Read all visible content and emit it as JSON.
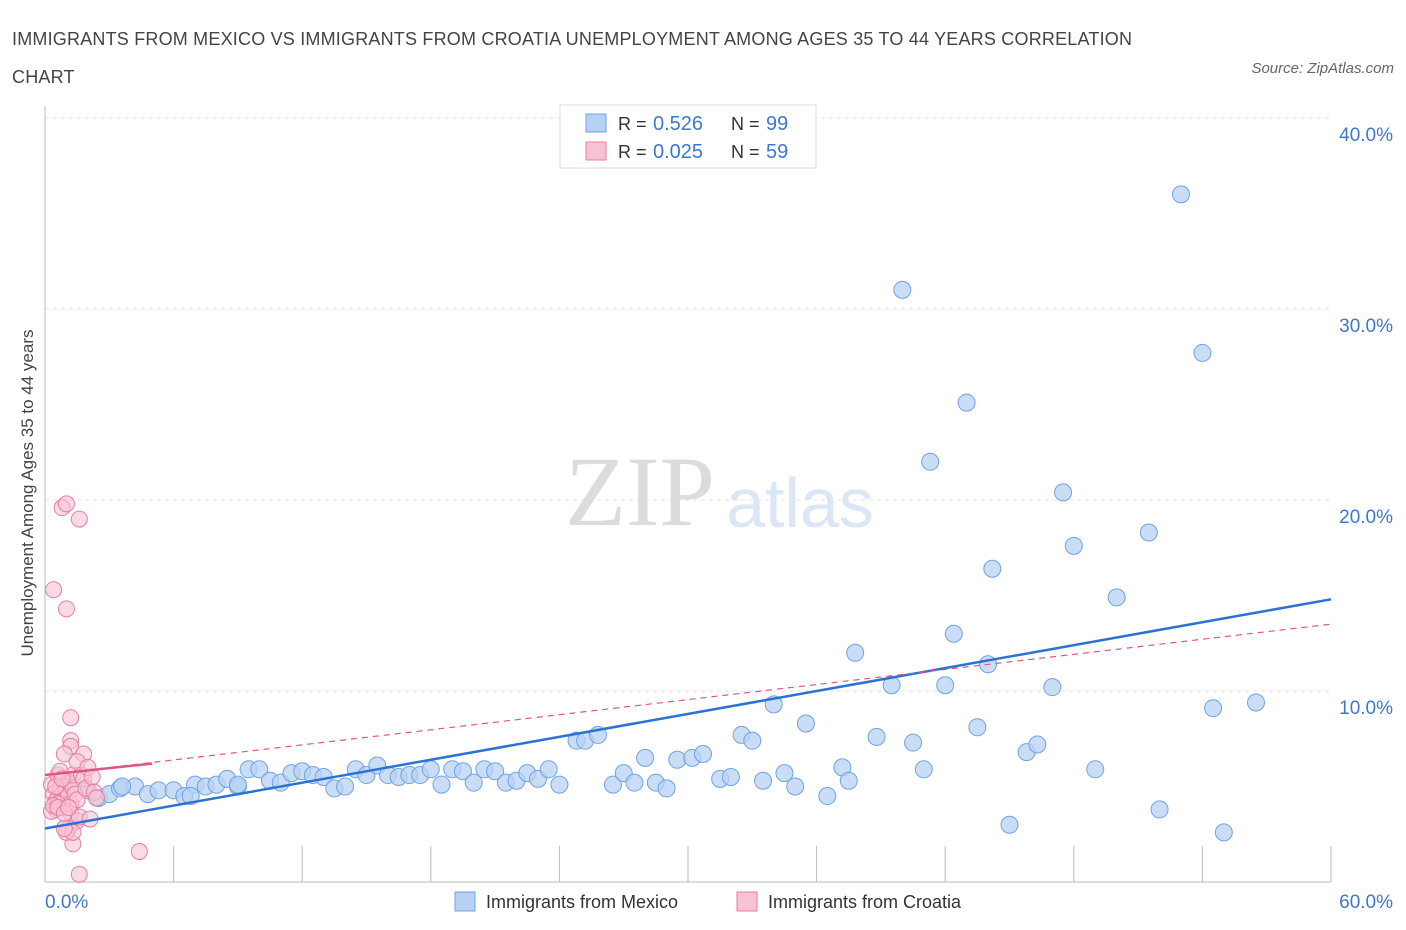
{
  "title": "IMMIGRANTS FROM MEXICO VS IMMIGRANTS FROM CROATIA UNEMPLOYMENT AMONG AGES 35 TO 44 YEARS CORRELATION CHART",
  "source": "Source: ZipAtlas.com",
  "watermark": {
    "zip": "ZIP",
    "atlas": "atlas"
  },
  "colors": {
    "mexico": "#6fa3e6",
    "mexico_fill": "#b7d1f4",
    "mexico_line": "#2a72d4",
    "croatia": "#e87ea3",
    "croatia_fill": "#f7c3d4",
    "croatia_line": "#e05585",
    "axis_text": "#3d78d0"
  },
  "legend_top": [
    {
      "r_label": "R = ",
      "r_value": "0.526",
      "n_label": "N = ",
      "n_value": "99"
    },
    {
      "r_label": "R = ",
      "r_value": "0.025",
      "n_label": "N = ",
      "n_value": "59"
    }
  ],
  "chart_data": {
    "type": "scatter",
    "title": "IMMIGRANTS FROM MEXICO VS IMMIGRANTS FROM CROATIA UNEMPLOYMENT AMONG AGES 35 TO 44 YEARS CORRELATION CHART",
    "xlabel": "",
    "ylabel": "Unemployment Among Ages 35 to 44 years",
    "xlim": [
      0,
      60
    ],
    "ylim": [
      0,
      40
    ],
    "x_tick_labels": [
      "0.0%",
      "60.0%"
    ],
    "y_ticks": [
      10,
      20,
      30,
      40
    ],
    "y_tick_labels": [
      "10.0%",
      "20.0%",
      "30.0%",
      "40.0%"
    ],
    "grid": true,
    "legend": "bottom",
    "series": [
      {
        "name": "Immigrants from Mexico",
        "trend": {
          "x": [
            0,
            60
          ],
          "y": [
            2.8,
            14.8
          ]
        },
        "points": [
          [
            2.0,
            4.8
          ],
          [
            2.5,
            4.4
          ],
          [
            3.0,
            4.6
          ],
          [
            3.5,
            4.9
          ],
          [
            4.2,
            5.0
          ],
          [
            4.8,
            4.6
          ],
          [
            5.3,
            4.8
          ],
          [
            6.0,
            4.8
          ],
          [
            6.5,
            4.5
          ],
          [
            7.0,
            5.1
          ],
          [
            7.5,
            5.0
          ],
          [
            8.0,
            5.1
          ],
          [
            8.5,
            5.4
          ],
          [
            9.0,
            5.0
          ],
          [
            9.5,
            5.9
          ],
          [
            10.0,
            5.9
          ],
          [
            10.5,
            5.3
          ],
          [
            11.0,
            5.2
          ],
          [
            11.5,
            5.7
          ],
          [
            12.0,
            5.8
          ],
          [
            12.5,
            5.6
          ],
          [
            13.0,
            5.5
          ],
          [
            13.5,
            4.9
          ],
          [
            14.0,
            5.0
          ],
          [
            14.5,
            5.9
          ],
          [
            15.0,
            5.6
          ],
          [
            15.5,
            6.1
          ],
          [
            16.0,
            5.6
          ],
          [
            16.5,
            5.5
          ],
          [
            17.0,
            5.6
          ],
          [
            17.5,
            5.6
          ],
          [
            18.0,
            5.9
          ],
          [
            18.5,
            5.1
          ],
          [
            19.0,
            5.9
          ],
          [
            19.5,
            5.8
          ],
          [
            20.0,
            5.2
          ],
          [
            20.5,
            5.9
          ],
          [
            21.0,
            5.8
          ],
          [
            21.5,
            5.2
          ],
          [
            22.0,
            5.3
          ],
          [
            22.5,
            5.7
          ],
          [
            23.0,
            5.4
          ],
          [
            23.5,
            5.9
          ],
          [
            24.0,
            5.1
          ],
          [
            24.8,
            7.4
          ],
          [
            25.2,
            7.4
          ],
          [
            25.8,
            7.7
          ],
          [
            26.5,
            5.1
          ],
          [
            27.0,
            5.7
          ],
          [
            27.5,
            5.2
          ],
          [
            28.0,
            6.5
          ],
          [
            28.5,
            5.2
          ],
          [
            29.0,
            4.9
          ],
          [
            29.5,
            6.4
          ],
          [
            30.2,
            6.5
          ],
          [
            30.7,
            6.7
          ],
          [
            31.5,
            5.4
          ],
          [
            32.0,
            5.5
          ],
          [
            32.5,
            7.7
          ],
          [
            33.0,
            7.4
          ],
          [
            33.5,
            5.3
          ],
          [
            34.0,
            9.3
          ],
          [
            34.5,
            5.7
          ],
          [
            35.0,
            5.0
          ],
          [
            35.5,
            8.3
          ],
          [
            36.5,
            4.5
          ],
          [
            37.2,
            6.0
          ],
          [
            37.5,
            5.3
          ],
          [
            37.8,
            12.0
          ],
          [
            38.8,
            7.6
          ],
          [
            39.5,
            10.3
          ],
          [
            40.0,
            31.0
          ],
          [
            40.5,
            7.3
          ],
          [
            41.0,
            5.9
          ],
          [
            41.3,
            22.0
          ],
          [
            42.0,
            10.3
          ],
          [
            42.4,
            13.0
          ],
          [
            43.0,
            25.1
          ],
          [
            43.5,
            8.1
          ],
          [
            44.2,
            16.4
          ],
          [
            44.0,
            11.4
          ],
          [
            45.0,
            3.0
          ],
          [
            45.8,
            6.8
          ],
          [
            46.3,
            7.2
          ],
          [
            47.0,
            10.2
          ],
          [
            47.5,
            20.4
          ],
          [
            48.0,
            17.6
          ],
          [
            49.0,
            5.9
          ],
          [
            50.0,
            14.9
          ],
          [
            51.5,
            18.3
          ],
          [
            52.0,
            3.8
          ],
          [
            53.0,
            36.0
          ],
          [
            54.0,
            27.7
          ],
          [
            54.5,
            9.1
          ],
          [
            55.0,
            2.6
          ],
          [
            56.5,
            9.4
          ],
          [
            3.6,
            5.0
          ],
          [
            6.8,
            4.5
          ],
          [
            9.0,
            5.1
          ]
        ]
      },
      {
        "name": "Immigrants from Croatia",
        "trend": {
          "x": [
            0,
            5
          ],
          "y": [
            5.6,
            6.2
          ]
        },
        "trend_ext": {
          "x": [
            0,
            60
          ],
          "y": [
            5.6,
            13.5
          ]
        },
        "points": [
          [
            0.3,
            5.1
          ],
          [
            0.4,
            4.6
          ],
          [
            0.5,
            4.2
          ],
          [
            0.5,
            3.8
          ],
          [
            0.6,
            4.4
          ],
          [
            0.6,
            5.6
          ],
          [
            0.7,
            4.9
          ],
          [
            0.7,
            4.1
          ],
          [
            0.8,
            3.9
          ],
          [
            0.8,
            4.6
          ],
          [
            0.9,
            4.3
          ],
          [
            0.9,
            5.4
          ],
          [
            1.0,
            4.0
          ],
          [
            1.0,
            4.8
          ],
          [
            1.1,
            5.2
          ],
          [
            1.1,
            4.5
          ],
          [
            1.2,
            3.6
          ],
          [
            1.2,
            4.1
          ],
          [
            1.3,
            4.9
          ],
          [
            1.3,
            5.6
          ],
          [
            0.4,
            15.3
          ],
          [
            1.0,
            14.3
          ],
          [
            0.8,
            19.6
          ],
          [
            1.0,
            19.8
          ],
          [
            1.6,
            19.0
          ],
          [
            1.2,
            8.6
          ],
          [
            1.2,
            7.4
          ],
          [
            1.2,
            7.1
          ],
          [
            1.8,
            6.7
          ],
          [
            0.9,
            6.7
          ],
          [
            1.5,
            6.3
          ],
          [
            1.3,
            2.0
          ],
          [
            1.5,
            3.2
          ],
          [
            1.6,
            3.4
          ],
          [
            2.1,
            3.3
          ],
          [
            1.1,
            2.8
          ],
          [
            1.0,
            2.6
          ],
          [
            1.3,
            2.6
          ],
          [
            0.9,
            2.8
          ],
          [
            4.4,
            1.6
          ],
          [
            1.6,
            0.4
          ],
          [
            0.5,
            5.0
          ],
          [
            0.6,
            4.1
          ],
          [
            0.7,
            5.8
          ],
          [
            0.8,
            5.4
          ],
          [
            1.4,
            4.6
          ],
          [
            1.5,
            4.3
          ],
          [
            1.7,
            5.6
          ],
          [
            1.8,
            5.4
          ],
          [
            1.9,
            4.9
          ],
          [
            2.0,
            6.0
          ],
          [
            2.2,
            5.5
          ],
          [
            2.3,
            4.7
          ],
          [
            2.4,
            4.4
          ],
          [
            0.3,
            3.7
          ],
          [
            0.4,
            4.0
          ],
          [
            0.6,
            3.9
          ],
          [
            0.9,
            3.6
          ],
          [
            1.1,
            3.9
          ]
        ]
      }
    ]
  }
}
